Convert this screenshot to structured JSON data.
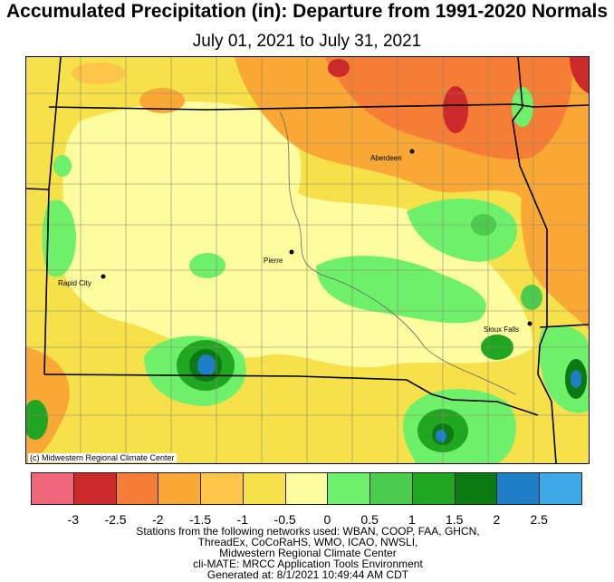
{
  "header": {
    "title": "Accumulated Precipitation (in): Departure from 1991-2020 Normals",
    "subtitle": "July 01, 2021 to July 31, 2021"
  },
  "map": {
    "copyright": "(c) Midwestern Regional Climate Center",
    "cities": [
      "Aberdeen",
      "Pierre",
      "Rapid City",
      "Sioux Falls"
    ]
  },
  "legend": {
    "colors": [
      "#ee6677",
      "#cc2a2a",
      "#f57d35",
      "#f9a735",
      "#fbc54a",
      "#f6e14a",
      "#fdfda0",
      "#6ff06a",
      "#4ccc4c",
      "#21a621",
      "#0b7a12",
      "#1f7ec8",
      "#3fa8e6"
    ],
    "ticks": [
      "-3",
      "-2.5",
      "-2",
      "-1.5",
      "-1",
      "-0.5",
      "0",
      "0.5",
      "1",
      "1.5",
      "2",
      "2.5"
    ]
  },
  "footer": {
    "lines": [
      "Stations from the following networks used: WBAN, COOP, FAA, GHCN,",
      "ThreadEx, CoCoRaHS, WMO, ICAO, NWSLI,",
      "Midwestern Regional Climate Center",
      "cli-MATE: MRCC Application Tools Environment",
      "Generated at: 8/1/2021 10:49:44 AM CDT"
    ]
  }
}
